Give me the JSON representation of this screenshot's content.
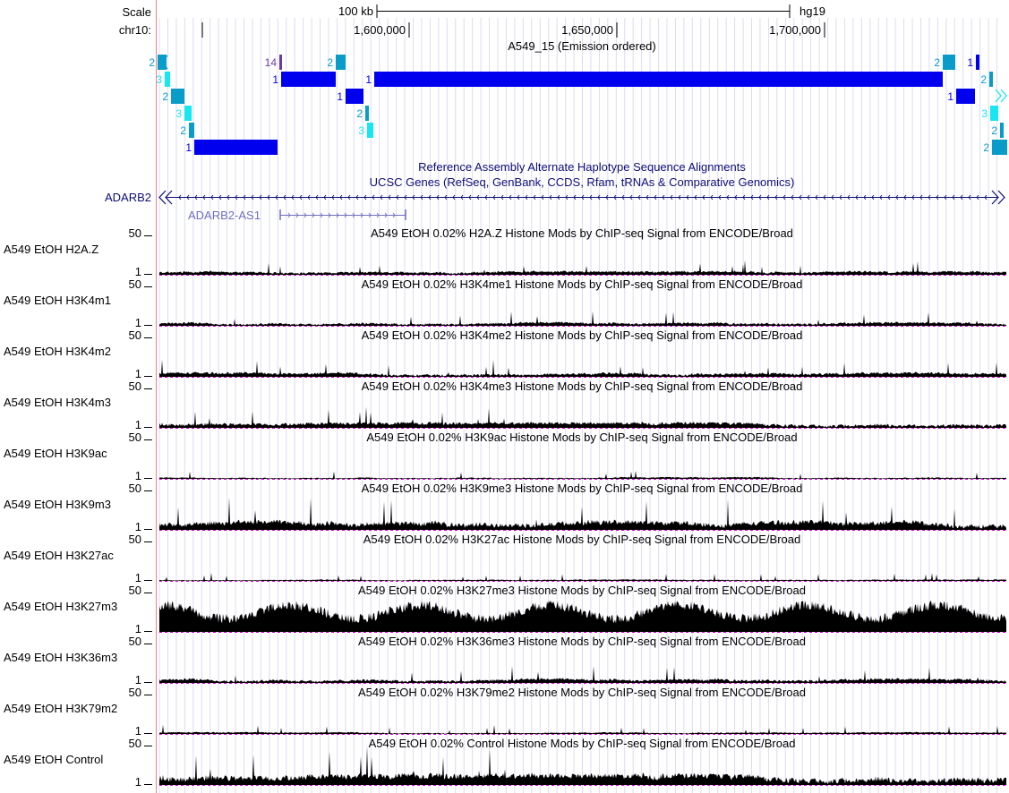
{
  "ruler": {
    "scale_label": "Scale",
    "scale_value": "100 kb",
    "assembly": "hg19",
    "chrom_label": "chr10:",
    "ticks": [
      "1,600,000",
      "1,650,000",
      "1,700,000"
    ]
  },
  "chromhmm": {
    "title": "A549_15 (Emission ordered)",
    "blocks": [
      {
        "state": "2",
        "row": 0,
        "kind": "arrow-left"
      },
      {
        "state": "3",
        "row": 1
      },
      {
        "state": "2",
        "row": 2
      },
      {
        "state": "3",
        "row": 3
      },
      {
        "state": "2",
        "row": 4
      },
      {
        "state": "1",
        "row": 5
      },
      {
        "state": "14",
        "row": 0
      },
      {
        "state": "1",
        "row": 1
      },
      {
        "state": "2",
        "row": 0
      },
      {
        "state": "1",
        "row": 2
      },
      {
        "state": "2",
        "row": 3
      },
      {
        "state": "3",
        "row": 4
      },
      {
        "state": "1",
        "row": 1
      },
      {
        "state": "2",
        "row": 0
      },
      {
        "state": "1",
        "row": 2
      },
      {
        "state": "1",
        "row": 0
      },
      {
        "state": "2",
        "row": 1
      },
      {
        "state": "3",
        "row": 3
      },
      {
        "state": "2",
        "row": 4
      },
      {
        "state": "2",
        "row": 5
      }
    ]
  },
  "alt_haplotype": {
    "title": "Reference Assembly Alternate Haplotype Sequence Alignments"
  },
  "genes": {
    "title": "UCSC Genes (RefSeq, GenBank, CCDS, Rfam, tRNAs & Comparative Genomics)",
    "items": [
      {
        "name": "ADARB2",
        "strand": "-"
      },
      {
        "name": "ADARB2-AS1",
        "strand": "+"
      }
    ]
  },
  "signal": {
    "ymax": "50",
    "ymin": "1",
    "tracks": [
      {
        "label": "A549 EtOH H2A.Z",
        "title": "A549 EtOH 0.02% H2A.Z Histone Mods by ChIP-seq Signal from ENCODE/Broad",
        "level": 0.1
      },
      {
        "label": "A549 EtOH H3K4m1",
        "title": "A549 EtOH 0.02% H3K4me1 Histone Mods by ChIP-seq Signal from ENCODE/Broad",
        "level": 0.1
      },
      {
        "label": "A549 EtOH H3K4m2",
        "title": "A549 EtOH 0.02% H3K4me2 Histone Mods by ChIP-seq Signal from ENCODE/Broad",
        "level": 0.12
      },
      {
        "label": "A549 EtOH H3K4m3",
        "title": "A549 EtOH 0.02% H3K4me3 Histone Mods by ChIP-seq Signal from ENCODE/Broad",
        "level": 0.15
      },
      {
        "label": "A549 EtOH H3K9ac",
        "title": "A549 EtOH 0.02% H3K9ac Histone Mods by ChIP-seq Signal from ENCODE/Broad",
        "level": 0.05
      },
      {
        "label": "A549 EtOH H3K9m3",
        "title": "A549 EtOH 0.02% H3K9me3 Histone Mods by ChIP-seq Signal from ENCODE/Broad",
        "level": 0.25
      },
      {
        "label": "A549 EtOH H3K27ac",
        "title": "A549 EtOH 0.02% H3K27ac Histone Mods by ChIP-seq Signal from ENCODE/Broad",
        "level": 0.04
      },
      {
        "label": "A549 EtOH H3K27m3",
        "title": "A549 EtOH 0.02% H3K27me3 Histone Mods by ChIP-seq Signal from ENCODE/Broad",
        "level": 0.7
      },
      {
        "label": "A549 EtOH H3K36m3",
        "title": "A549 EtOH 0.02% H3K36me3 Histone Mods by ChIP-seq Signal from ENCODE/Broad",
        "level": 0.12
      },
      {
        "label": "A549 EtOH H3K79m2",
        "title": "A549 EtOH 0.02% H3K79me2 Histone Mods by ChIP-seq Signal from ENCODE/Broad",
        "level": 0.05
      },
      {
        "label": "A549 EtOH Control",
        "title": "A549 EtOH 0.02% Control Histone Mods by ChIP-seq Signal from ENCODE/Broad",
        "level": 0.3
      }
    ]
  },
  "colors": {
    "state1": "#0000ee",
    "state2": "#0a9cc8",
    "state3": "#18e6f0",
    "state14": "#6a3c9e",
    "gene": "#0c0c78",
    "gene_noncoding": "#6f6fc0",
    "signal": "#000000",
    "baseline": "#dd00dd",
    "grid": "#dcdcf4",
    "edge": "#f08080"
  }
}
